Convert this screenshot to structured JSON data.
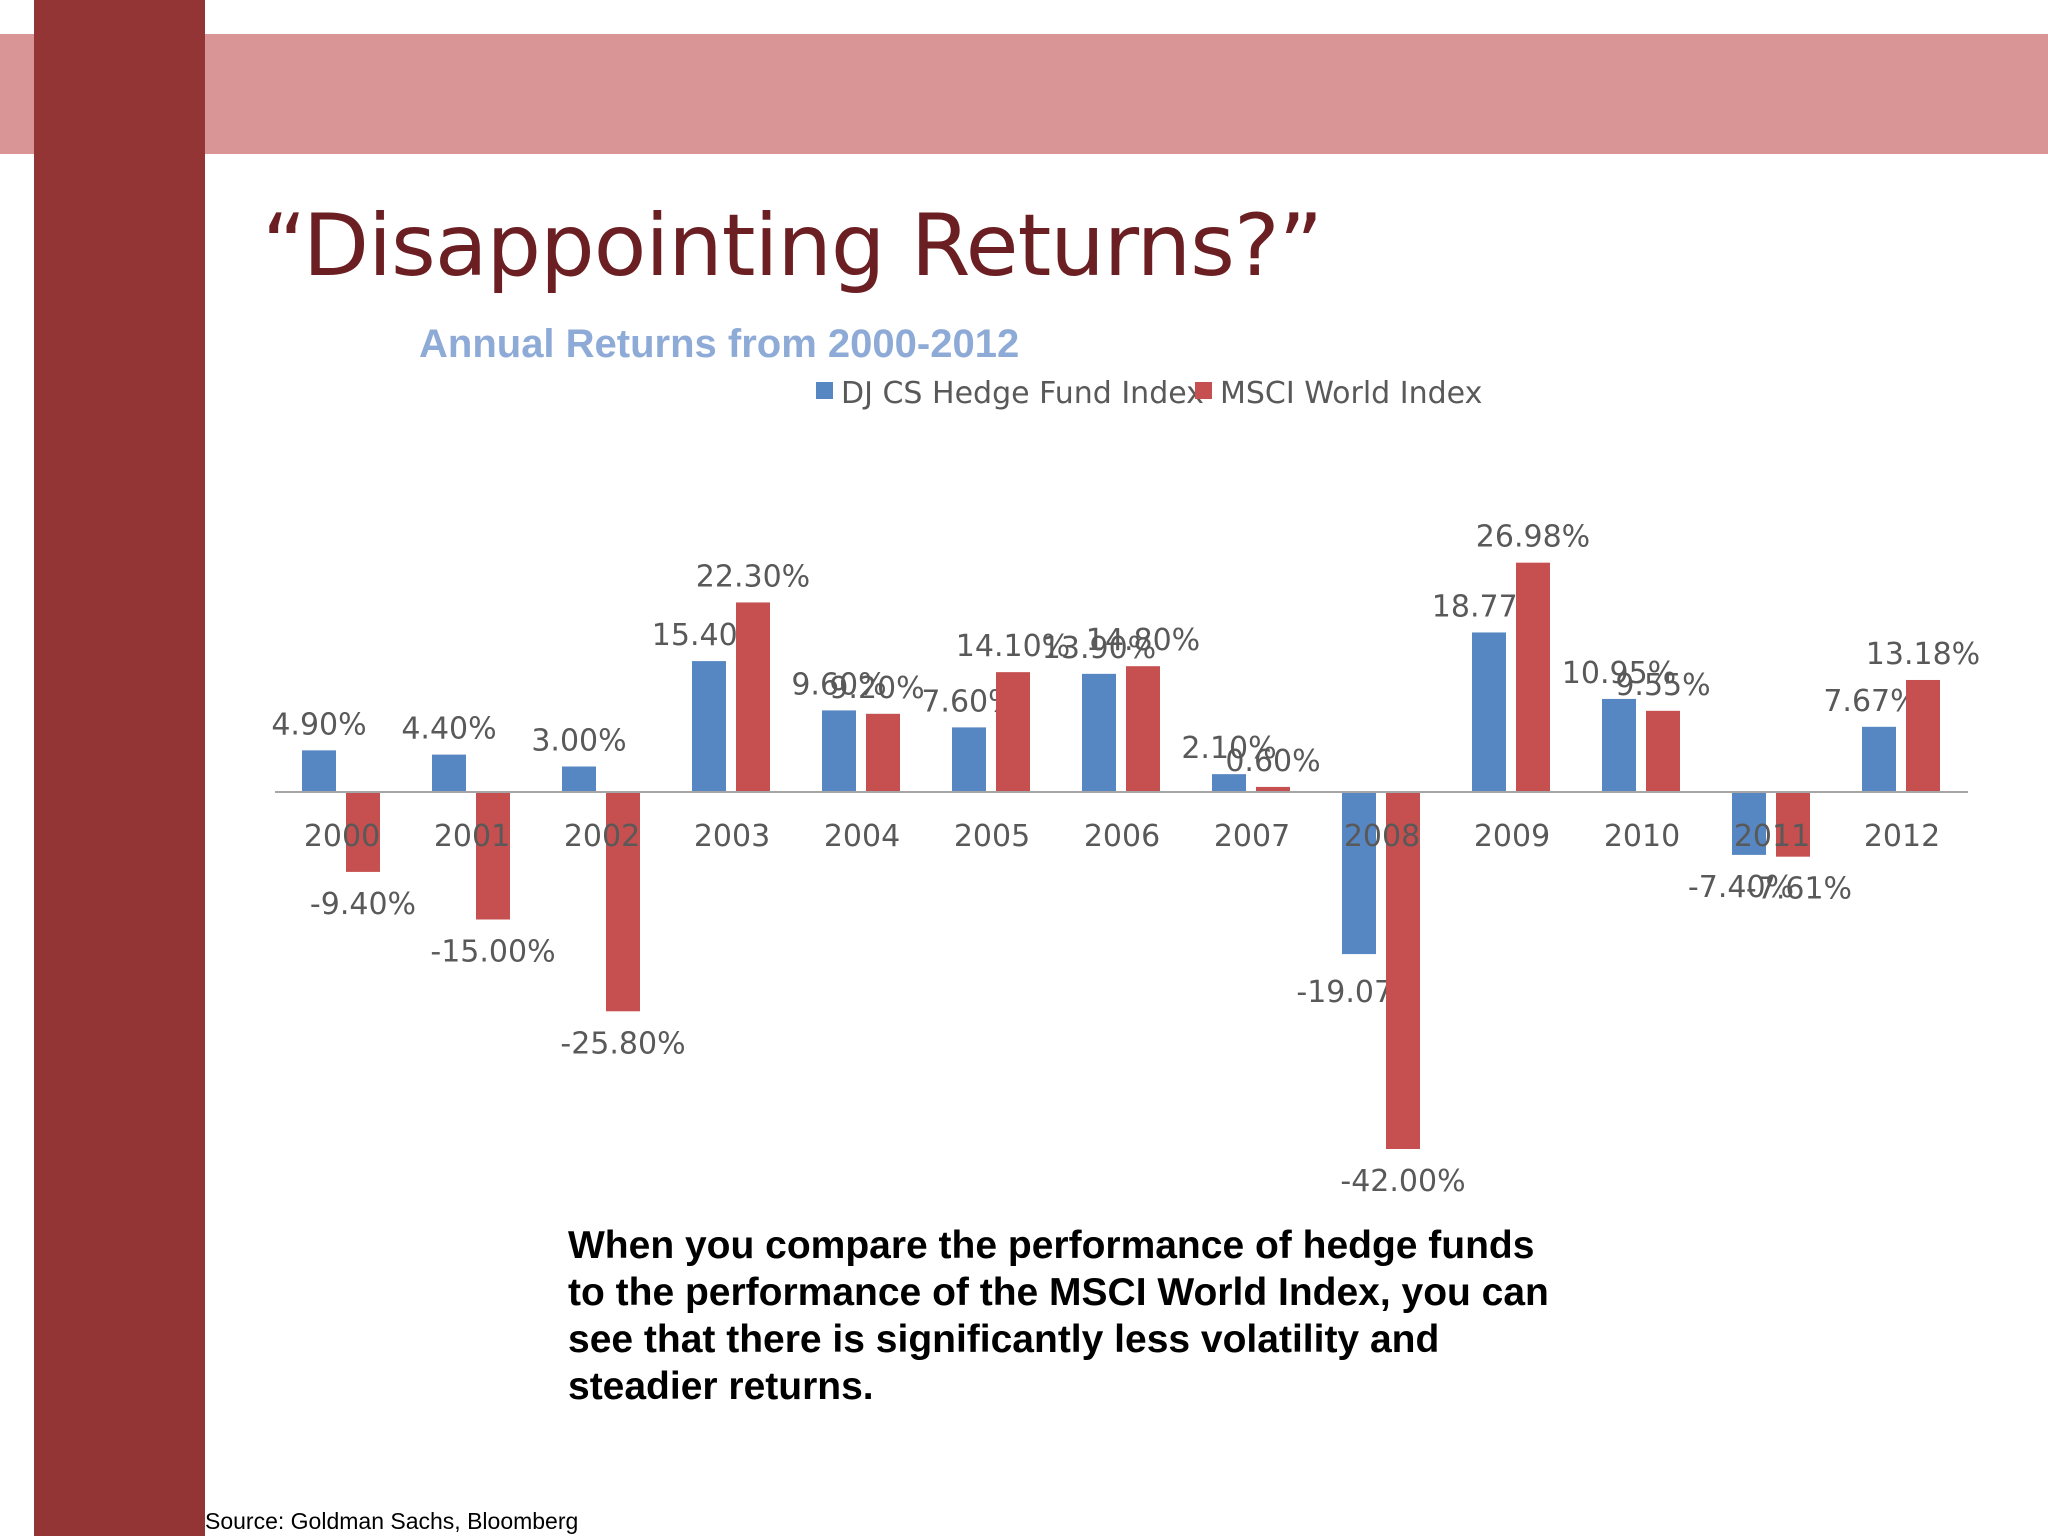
{
  "slide": {
    "title": "“Disappointing Returns?”",
    "commentary": "When you compare the performance of hedge funds to the performance of the MSCI World Index, you can see that there is significantly less volatility and steadier returns.",
    "source": "Source: Goldman Sachs, Bloomberg"
  },
  "colors": {
    "top_band": "#d99595",
    "left_bar": "#933435",
    "title": "#6b1f22",
    "chart_title": "#8eaad6"
  },
  "chart_data": {
    "type": "bar",
    "title": "Annual Returns from 2000-2012",
    "xlabel": "",
    "ylabel": "",
    "ylim": [
      -42,
      26.98
    ],
    "grid": false,
    "legend_position": "top",
    "categories": [
      "2000",
      "2001",
      "2002",
      "2003",
      "2004",
      "2005",
      "2006",
      "2007",
      "2008",
      "2009",
      "2010",
      "2011",
      "2012"
    ],
    "series": [
      {
        "name": "DJ CS Hedge Fund Index",
        "color": "#5687c3",
        "values": [
          4.9,
          4.4,
          3.0,
          15.4,
          9.6,
          7.6,
          13.9,
          2.1,
          -19.07,
          18.77,
          10.95,
          -7.4,
          7.67
        ],
        "labels": [
          "4.90%",
          "4.40%",
          "3.00%",
          "15.40%",
          "9.60%",
          "7.60%",
          "13.90%",
          "2.10%",
          "-19.07%",
          "18.77%",
          "10.95%",
          "-7.40%",
          "7.67%"
        ]
      },
      {
        "name": "MSCI World Index",
        "color": "#c5504f",
        "values": [
          -9.4,
          -15.0,
          -25.8,
          22.3,
          9.2,
          14.1,
          14.8,
          0.6,
          -42.0,
          26.98,
          9.55,
          -7.61,
          13.18
        ],
        "labels": [
          "-9.40%",
          "-15.00%",
          "-25.80%",
          "22.30%",
          "9.20%",
          "14.10%",
          "14.80%",
          "0.60%",
          "-42.00%",
          "26.98%",
          "9.55%",
          "-7.61%",
          "13.18%"
        ]
      }
    ]
  }
}
